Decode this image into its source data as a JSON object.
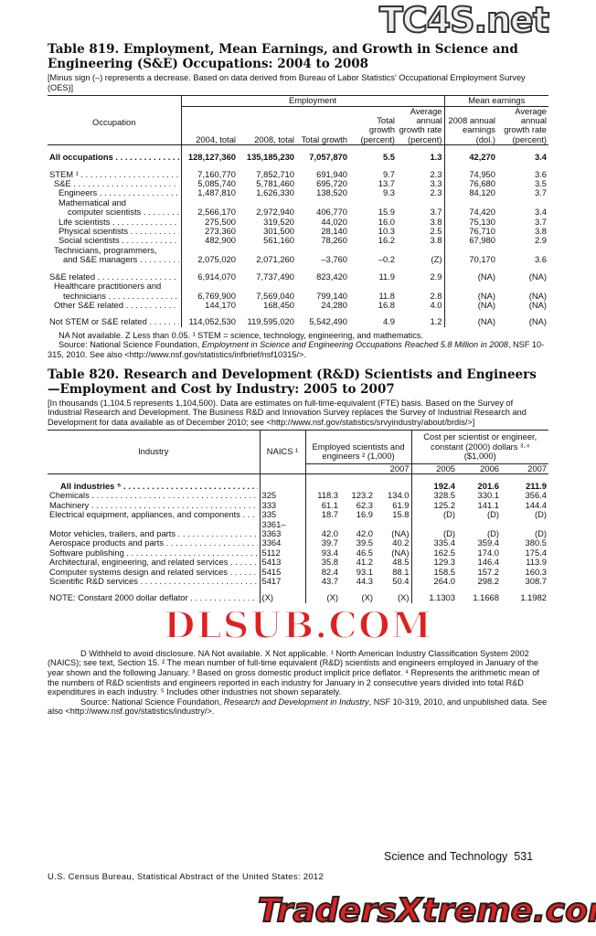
{
  "watermarks": {
    "top": "TC4S.net",
    "middle": "DLSUB.COM",
    "bottom": "TradersXtreme.com"
  },
  "t819": {
    "title": "Table 819. Employment, Mean Earnings, and Growth in Science and Engineering (S&E) Occupations: 2004 to 2008",
    "headnote": "[Minus sign (–) represents a decrease. Based on data derived from Bureau of Labor Statistics' Occupational Employment Survey (OES)]",
    "group_employment": "Employment",
    "group_earnings": "Mean earnings",
    "col_occupation": "Occupation",
    "cols": [
      "2004, total",
      "2008, total",
      "Total growth",
      "Total growth (percent)",
      "Average annual growth rate (percent)",
      "2008 annual earnings (dol.)",
      "Average annual growth rate (percent)"
    ],
    "rows": [
      {
        "label": [
          "All occupations"
        ],
        "level": 0,
        "bold": true,
        "values": [
          "128,127,360",
          "135,185,230",
          "7,057,870",
          "5.5",
          "1.3",
          "42,270",
          "3.4"
        ]
      },
      {
        "label": [
          "STEM ¹"
        ],
        "level": 0,
        "gap": true,
        "values": [
          "7,160,770",
          "7,852,710",
          "691,940",
          "9.7",
          "2.3",
          "74,950",
          "3.6"
        ]
      },
      {
        "label": [
          "S&E"
        ],
        "level": 1,
        "values": [
          "5,085,740",
          "5,781,460",
          "695,720",
          "13.7",
          "3.3",
          "76,680",
          "3.5"
        ]
      },
      {
        "label": [
          "Engineers"
        ],
        "level": 2,
        "values": [
          "1,487,810",
          "1,626,330",
          "138,520",
          "9.3",
          "2.3",
          "84,120",
          "3.7"
        ]
      },
      {
        "label": [
          "Mathematical and",
          "computer scientists"
        ],
        "level": 2,
        "values": [
          "2,566,170",
          "2,972,940",
          "406,770",
          "15.9",
          "3.7",
          "74,420",
          "3.4"
        ]
      },
      {
        "label": [
          "Life scientists"
        ],
        "level": 2,
        "values": [
          "275,500",
          "319,520",
          "44,020",
          "16.0",
          "3.8",
          "75,130",
          "3.7"
        ]
      },
      {
        "label": [
          "Physical scientists"
        ],
        "level": 2,
        "values": [
          "273,360",
          "301,500",
          "28,140",
          "10.3",
          "2.5",
          "76,710",
          "3.8"
        ]
      },
      {
        "label": [
          "Social scientists"
        ],
        "level": 2,
        "values": [
          "482,900",
          "561,160",
          "78,260",
          "16.2",
          "3.8",
          "67,980",
          "2.9"
        ]
      },
      {
        "label": [
          "Technicians, programmers,",
          "and S&E managers"
        ],
        "level": 1,
        "values": [
          "2,075,020",
          "2,071,260",
          "–3,760",
          "–0.2",
          "(Z)",
          "70,170",
          "3.6"
        ]
      },
      {
        "label": [
          "S&E related"
        ],
        "level": 0,
        "gap": true,
        "values": [
          "6,914,070",
          "7,737,490",
          "823,420",
          "11.9",
          "2.9",
          "(NA)",
          "(NA)"
        ]
      },
      {
        "label": [
          "Healthcare practitioners and",
          "technicians"
        ],
        "level": 1,
        "values": [
          "6,769,900",
          "7,569,040",
          "799,140",
          "11.8",
          "2.8",
          "(NA)",
          "(NA)"
        ]
      },
      {
        "label": [
          "Other S&E related"
        ],
        "level": 1,
        "values": [
          "144,170",
          "168,450",
          "24,280",
          "16.8",
          "4.0",
          "(NA)",
          "(NA)"
        ]
      },
      {
        "label": [
          "Not STEM or S&E related"
        ],
        "level": 0,
        "gap": true,
        "values": [
          "114,052,530",
          "119,595,020",
          "5,542,490",
          "4.9",
          "1.2",
          "(NA)",
          "(NA)"
        ]
      }
    ],
    "footnote": "NA Not available. Z Less than 0.05. ¹ STEM = science, technology, engineering, and mathematics.",
    "source_pre": "Source: National Science Foundation, ",
    "source_title": "Employment in Science and Engineering Occupations Reached 5.8 Million in 2008",
    "source_post": ", NSF 10-315, 2010. See also <http://www.nsf.gov/statistics/infbrief/nsf10315/>."
  },
  "t820": {
    "title": "Table 820. Research and Development (R&D) Scientists and Engineers—Employment and Cost by Industry: 2005 to 2007",
    "headnote": "[In thousands (1,104.5 represents 1,104,500). Data are estimates on full-time-equivalent (FTE) basis. Based on the Survey of Industrial Research and Development. The Business R&D and Innovation Survey replaces the Survey of Industrial Research and Development for data available as of December 2010; see <http://www.nsf.gov/statistics/srvyindustry/about/brdis/>]",
    "col_industry": "Industry",
    "col_naics": "NAICS ¹",
    "group_employed": "Employed scientists and engineers ² (1,000)",
    "group_cost": "Cost per scientist or engineer, constant (2000) dollars ³·⁴ ($1,000)",
    "years_emp": [
      "",
      "",
      "2007"
    ],
    "years_cost": [
      "2005",
      "2006",
      "2007"
    ],
    "rows": [
      {
        "label": "All industries ⁵",
        "bold": true,
        "naics": "",
        "values": [
          "",
          "",
          "",
          "192.4",
          "201.6",
          "211.9"
        ]
      },
      {
        "label": "Chemicals",
        "naics": "325",
        "values": [
          "118.3",
          "123.2",
          "134.0",
          "328.5",
          "330.1",
          "356.4"
        ]
      },
      {
        "label": "Machinery",
        "naics": "333",
        "values": [
          "61.1",
          "62.3",
          "61.9",
          "125.2",
          "141.1",
          "144.4"
        ]
      },
      {
        "label": "Electrical equipment, appliances, and components",
        "naics": "335",
        "values": [
          "18.7",
          "16.9",
          "15.8",
          "(D)",
          "(D)",
          "(D)"
        ]
      },
      {
        "label": "Motor vehicles, trailers, and parts",
        "naics": "3361–3363",
        "values": [
          "42.0",
          "42.0",
          "(NA)",
          "(D)",
          "(D)",
          "(D)"
        ]
      },
      {
        "label": "Aerospace products and parts",
        "naics": "3364",
        "values": [
          "39.7",
          "39.5",
          "40.2",
          "335.4",
          "359.4",
          "380.5"
        ]
      },
      {
        "label": "Software publishing",
        "naics": "5112",
        "values": [
          "93.4",
          "46.5",
          "(NA)",
          "162.5",
          "174.0",
          "175.4"
        ]
      },
      {
        "label": "Architectural, engineering, and related services",
        "naics": "5413",
        "values": [
          "35.8",
          "41.2",
          "48.5",
          "129.3",
          "146.4",
          "113.9"
        ]
      },
      {
        "label": "Computer systems design and related services",
        "naics": "5415",
        "values": [
          "82.4",
          "93.1",
          "88.1",
          "158.5",
          "157.2",
          "160.3"
        ]
      },
      {
        "label": "Scientific R&D services",
        "naics": "5417",
        "values": [
          "43.7",
          "44.3",
          "50.4",
          "264.0",
          "298.2",
          "308.7"
        ]
      },
      {
        "label": "NOTE: Constant 2000 dollar deflator",
        "naics": "(X)",
        "gap": true,
        "values": [
          "(X)",
          "(X)",
          "(X)",
          "1.1303",
          "1.1668",
          "1.1982"
        ]
      }
    ],
    "footnote": "D Withheld to avoid disclosure. NA Not available. X Not applicable. ¹ North American Industry Classification System 2002 (NAICS); see text, Section 15. ² The mean number of full-time equivalent (R&D) scientists and engineers employed in January of the year shown and the following January. ³ Based on gross domestic product implicit price deflator. ⁴ Represents the arithmetic mean of the numbers of R&D scientists and engineers reported in each industry for January in 2 consecutive years divided into total R&D expenditures in each industry. ⁵ Includes other industries not shown separately.",
    "source_pre": "Source: National Science Foundation, ",
    "source_title": "Research and Development in Industry",
    "source_post": ", NSF 10-319, 2010, and unpublished data. See also <http://www.nsf.gov/statistics/industry/>."
  },
  "footer": {
    "section": "Science and Technology",
    "page": "531",
    "publisher": "U.S. Census Bureau, Statistical Abstract of the United States: 2012"
  }
}
